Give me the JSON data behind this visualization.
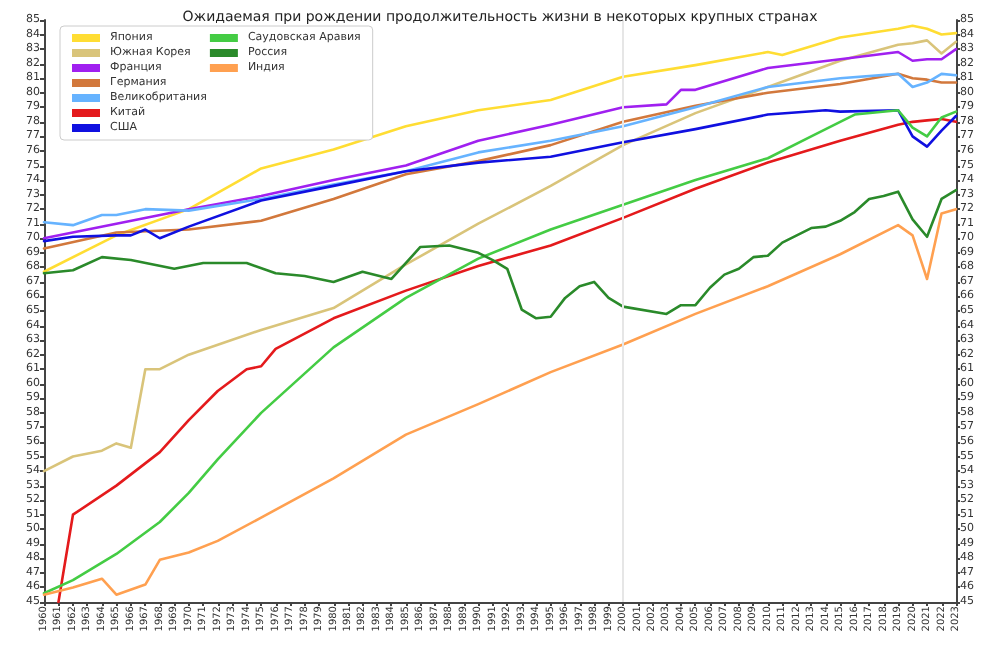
{
  "chart_data": {
    "type": "line",
    "title": "Ожидаемая при рождении продолжительность жизни в некоторых крупных странах",
    "xlim": [
      1960,
      2023
    ],
    "xticks": [
      1960,
      1961,
      1962,
      1963,
      1964,
      1965,
      1966,
      1967,
      1968,
      1969,
      1970,
      1971,
      1972,
      1973,
      1974,
      1975,
      1976,
      1977,
      1978,
      1979,
      1980,
      1981,
      1982,
      1983,
      1984,
      1985,
      1986,
      1987,
      1988,
      1989,
      1990,
      1991,
      1992,
      1993,
      1994,
      1995,
      1996,
      1997,
      1998,
      1999,
      2000,
      2001,
      2002,
      2003,
      2004,
      2005,
      2006,
      2007,
      2008,
      2009,
      2010,
      2011,
      2012,
      2013,
      2014,
      2015,
      2016,
      2017,
      2018,
      2019,
      2020,
      2021,
      2022,
      2023
    ],
    "ylim": [
      45,
      85
    ],
    "yticks": [
      45,
      46,
      47,
      48,
      49,
      50,
      51,
      52,
      53,
      54,
      55,
      56,
      57,
      58,
      59,
      60,
      61,
      62,
      63,
      64,
      65,
      66,
      67,
      68,
      69,
      70,
      71,
      72,
      73,
      74,
      75,
      76,
      77,
      78,
      79,
      80,
      81,
      82,
      83,
      84,
      85
    ],
    "y2lim": [
      45,
      85
    ],
    "y2ticks": [
      45,
      46,
      47,
      48,
      49,
      50,
      51,
      52,
      53,
      54,
      55,
      56,
      57,
      58,
      59,
      60,
      61,
      62,
      63,
      64,
      65,
      66,
      67,
      68,
      69,
      70,
      71,
      72,
      73,
      74,
      75,
      76,
      77,
      78,
      79,
      80,
      81,
      82,
      83,
      84,
      85
    ],
    "grid": false,
    "legend": "top left",
    "marker": "none",
    "line_style": "solid",
    "ref_lines": [
      {
        "axis": "x",
        "value": 2000,
        "color": "#e6e6e6"
      }
    ],
    "series": [
      {
        "name": "Япония",
        "color": "#ffdd33",
        "x": [
          1960,
          1965,
          1970,
          1975,
          1980,
          1985,
          1990,
          1995,
          2000,
          2005,
          2010,
          2011,
          2015,
          2019,
          2020,
          2021,
          2022,
          2023
        ],
        "values": [
          67.7,
          70.2,
          72.0,
          74.8,
          76.1,
          77.7,
          78.8,
          79.5,
          81.1,
          81.9,
          82.8,
          82.6,
          83.8,
          84.4,
          84.6,
          84.4,
          84.0,
          84.1
        ]
      },
      {
        "name": "Южная Корея",
        "color": "#d9c47a",
        "x": [
          1960,
          1962,
          1964,
          1965,
          1966,
          1967,
          1968,
          1970,
          1975,
          1980,
          1985,
          1990,
          1995,
          2000,
          2005,
          2010,
          2015,
          2019,
          2020,
          2021,
          2022,
          2023
        ],
        "values": [
          54.0,
          55.0,
          55.4,
          55.9,
          55.6,
          61.0,
          61.0,
          62.0,
          63.7,
          65.2,
          68.2,
          71.0,
          73.6,
          76.4,
          78.6,
          80.4,
          82.2,
          83.3,
          83.4,
          83.6,
          82.7,
          83.5
        ]
      },
      {
        "name": "Франция",
        "color": "#a020f0",
        "x": [
          1960,
          1965,
          1970,
          1975,
          1980,
          1985,
          1990,
          1995,
          2000,
          2003,
          2004,
          2005,
          2010,
          2015,
          2019,
          2020,
          2021,
          2022,
          2023
        ],
        "values": [
          70.0,
          71.0,
          72.0,
          72.9,
          74.0,
          75.0,
          76.7,
          77.8,
          79.0,
          79.2,
          80.2,
          80.2,
          81.7,
          82.3,
          82.8,
          82.2,
          82.3,
          82.3,
          83.0
        ]
      },
      {
        "name": "Германия",
        "color": "#d2783c",
        "x": [
          1960,
          1965,
          1970,
          1975,
          1980,
          1985,
          1990,
          1995,
          2000,
          2005,
          2010,
          2015,
          2019,
          2020,
          2021,
          2022,
          2023
        ],
        "values": [
          69.3,
          70.4,
          70.6,
          71.2,
          72.7,
          74.4,
          75.3,
          76.4,
          78.0,
          79.1,
          80.0,
          80.6,
          81.3,
          81.0,
          80.9,
          80.7,
          80.7
        ]
      },
      {
        "name": "Великобритания",
        "color": "#66b3ff",
        "x": [
          1960,
          1962,
          1964,
          1965,
          1967,
          1970,
          1975,
          1980,
          1985,
          1990,
          1995,
          2000,
          2005,
          2010,
          2015,
          2019,
          2020,
          2021,
          2022,
          2023
        ],
        "values": [
          71.1,
          70.9,
          71.6,
          71.6,
          72.0,
          71.9,
          72.7,
          73.7,
          74.6,
          75.9,
          76.7,
          77.7,
          79.0,
          80.4,
          81.0,
          81.3,
          80.4,
          80.7,
          81.3,
          81.2
        ]
      },
      {
        "name": "Китай",
        "color": "#e41a1c",
        "x": [
          1961,
          1962,
          1965,
          1968,
          1970,
          1972,
          1974,
          1975,
          1976,
          1980,
          1985,
          1990,
          1995,
          2000,
          2005,
          2010,
          2015,
          2019,
          2020,
          2021,
          2022,
          2023
        ],
        "values": [
          45.0,
          51.0,
          53.0,
          55.3,
          57.5,
          59.5,
          61.0,
          61.2,
          62.4,
          64.5,
          66.4,
          68.1,
          69.5,
          71.4,
          73.4,
          75.2,
          76.7,
          77.8,
          78.0,
          78.1,
          78.2,
          78.0
        ]
      },
      {
        "name": "США",
        "color": "#1010e0",
        "x": [
          1960,
          1962,
          1965,
          1966,
          1967,
          1968,
          1970,
          1975,
          1980,
          1985,
          1990,
          1995,
          2000,
          2005,
          2010,
          2014,
          2015,
          2019,
          2020,
          2021,
          2022,
          2023
        ],
        "values": [
          69.8,
          70.1,
          70.2,
          70.2,
          70.6,
          70.0,
          70.8,
          72.6,
          73.6,
          74.6,
          75.2,
          75.6,
          76.6,
          77.5,
          78.5,
          78.8,
          78.7,
          78.8,
          77.0,
          76.3,
          77.4,
          78.4
        ]
      },
      {
        "name": "Саудовская Аравия",
        "color": "#44cc44",
        "x": [
          1960,
          1962,
          1965,
          1968,
          1970,
          1972,
          1975,
          1980,
          1985,
          1990,
          1995,
          2000,
          2005,
          2010,
          2013,
          2016,
          2019,
          2020,
          2021,
          2022,
          2023
        ],
        "values": [
          45.6,
          46.5,
          48.3,
          50.5,
          52.5,
          54.8,
          58.0,
          62.5,
          65.9,
          68.6,
          70.6,
          72.3,
          74.0,
          75.5,
          77.0,
          78.5,
          78.8,
          77.6,
          77.0,
          78.3,
          78.7
        ]
      },
      {
        "name": "Россия",
        "color": "#2a8a2a",
        "x": [
          1960,
          1962,
          1964,
          1966,
          1969,
          1971,
          1974,
          1976,
          1978,
          1980,
          1982,
          1984,
          1986,
          1988,
          1990,
          1991,
          1992,
          1993,
          1994,
          1995,
          1996,
          1997,
          1998,
          1999,
          2000,
          2003,
          2004,
          2005,
          2006,
          2007,
          2008,
          2009,
          2010,
          2011,
          2012,
          2013,
          2014,
          2015,
          2016,
          2017,
          2018,
          2019,
          2020,
          2021,
          2022,
          2023
        ],
        "values": [
          67.6,
          67.8,
          68.7,
          68.5,
          67.9,
          68.3,
          68.3,
          67.6,
          67.4,
          67.0,
          67.7,
          67.2,
          69.4,
          69.5,
          69.0,
          68.5,
          67.9,
          65.1,
          64.5,
          64.6,
          65.9,
          66.7,
          67.0,
          65.9,
          65.3,
          64.8,
          65.4,
          65.4,
          66.6,
          67.5,
          67.9,
          68.7,
          68.8,
          69.7,
          70.2,
          70.7,
          70.8,
          71.2,
          71.8,
          72.7,
          72.9,
          73.2,
          71.3,
          70.1,
          72.7,
          73.3
        ]
      },
      {
        "name": "Индия",
        "color": "#ffa050",
        "x": [
          1960,
          1962,
          1964,
          1965,
          1967,
          1968,
          1970,
          1972,
          1975,
          1980,
          1985,
          1990,
          1995,
          2000,
          2005,
          2010,
          2015,
          2019,
          2020,
          2021,
          2022,
          2023
        ],
        "values": [
          45.5,
          46.0,
          46.6,
          45.5,
          46.2,
          47.9,
          48.4,
          49.2,
          50.8,
          53.5,
          56.5,
          58.6,
          60.8,
          62.7,
          64.8,
          66.7,
          68.9,
          70.9,
          70.2,
          67.2,
          71.7,
          72.0
        ]
      }
    ]
  }
}
